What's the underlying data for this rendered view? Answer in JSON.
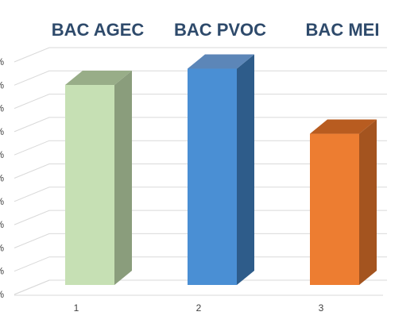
{
  "chart_data": {
    "type": "bar",
    "three_d": true,
    "categories": [
      "1",
      "2",
      "3"
    ],
    "series": [
      {
        "name": "BAC AGEC",
        "value": 86,
        "colors": {
          "front": "#c6e0b4",
          "side": "#8a9d7c",
          "top": "#98ad88"
        }
      },
      {
        "name": "BAC PVOC",
        "value": 93,
        "colors": {
          "front": "#4a8fd4",
          "side": "#2e5c8a",
          "top": "#5c86b8"
        }
      },
      {
        "name": "BAC MEI",
        "value": 65,
        "colors": {
          "front": "#ed7d31",
          "side": "#a4541f",
          "top": "#b85c20"
        }
      }
    ],
    "y_ticks": [
      "%",
      "%",
      "%",
      "%",
      "%",
      "%",
      "%",
      "%",
      "%",
      "%",
      "%"
    ],
    "ylim": [
      0,
      100
    ],
    "grid": true,
    "legend": "none",
    "colors": {
      "grid": "#d9d9d9",
      "title": "#2e4a6b",
      "axis_text": "#404040"
    }
  }
}
